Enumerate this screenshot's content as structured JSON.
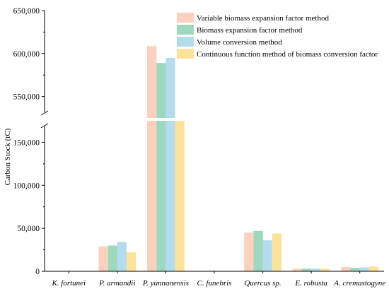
{
  "chart_data": {
    "type": "bar",
    "ylabel": "Carbon Stock (tC)",
    "xlabel": "",
    "categories": [
      "K. fortunei",
      "P. armandii",
      "P. yunnanensis",
      "C. funebris",
      "Quercus sp.",
      "E. robusta",
      "A. cremastogyne"
    ],
    "series": [
      {
        "name": "Variable biomass expansion factor method",
        "color": "#fdd0c0",
        "values": [
          0,
          29000,
          609000,
          0,
          45000,
          3000,
          5000
        ]
      },
      {
        "name": "Biomass expansion factor method",
        "color": "#9cd9bd",
        "values": [
          0,
          30000,
          589000,
          0,
          47000,
          3000,
          4000
        ]
      },
      {
        "name": "Volume conversion method",
        "color": "#b5dced",
        "values": [
          0,
          34000,
          595000,
          0,
          36000,
          3000,
          4500
        ]
      },
      {
        "name": "Continuous function method of biomass conversion factor",
        "color": "#fde29a",
        "values": [
          0,
          22000,
          175000,
          0,
          44000,
          3000,
          5500
        ]
      }
    ],
    "y_axis_break": true,
    "ylim_lower": [
      0,
      175000
    ],
    "ylim_upper": [
      525000,
      650000
    ],
    "yticks_lower": [
      "0",
      "50,000",
      "100,000",
      "150,000"
    ],
    "yticks_upper": [
      "550,000",
      "600,000",
      "650,000"
    ],
    "legend_position": "top-right",
    "grid": false
  }
}
